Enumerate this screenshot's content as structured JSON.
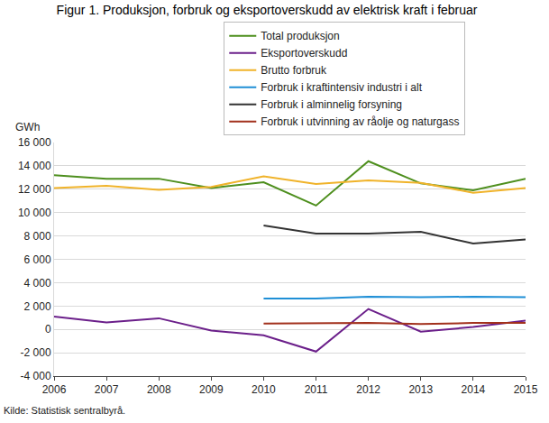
{
  "chart_data": {
    "type": "line",
    "title": "Figur 1. Produksjon, forbruk og eksportoverskudd av elektrisk kraft i februar",
    "ylabel": "GWh",
    "source": "Kilde: Statistisk sentralbyrå.",
    "x": [
      2006,
      2007,
      2008,
      2009,
      2010,
      2011,
      2012,
      2013,
      2014,
      2015
    ],
    "xlim": [
      2006,
      2015
    ],
    "xticks": [
      2006,
      2007,
      2008,
      2009,
      2010,
      2011,
      2012,
      2013,
      2014,
      2015
    ],
    "ylim": [
      -4000,
      16000
    ],
    "yticks": [
      {
        "value": -4000,
        "label": "-4 000"
      },
      {
        "value": -2000,
        "label": "-2 000"
      },
      0,
      {
        "value": 2000,
        "label": "2 000"
      },
      {
        "value": 4000,
        "label": "4 000"
      },
      {
        "value": 6000,
        "label": "6 000"
      },
      {
        "value": 8000,
        "label": "8 000"
      },
      {
        "value": 10000,
        "label": "10 000"
      },
      {
        "value": 12000,
        "label": "12 000"
      },
      {
        "value": 14000,
        "label": "14 000"
      },
      {
        "value": 16000,
        "label": "16 000"
      }
    ],
    "grid": true,
    "legend": "top",
    "series": [
      {
        "name": "Total produksjon",
        "color": "#4e8f1e",
        "values": [
          13200,
          12900,
          12900,
          12100,
          12600,
          10600,
          14400,
          12500,
          11900,
          12900
        ]
      },
      {
        "name": "Eksportoverskudd",
        "color": "#6b1f8a",
        "values": [
          1100,
          600,
          950,
          -100,
          -500,
          -1900,
          1750,
          -200,
          200,
          750
        ]
      },
      {
        "name": "Brutto forbruk",
        "color": "#f0b32a",
        "values": [
          12100,
          12300,
          11950,
          12200,
          13100,
          12450,
          12750,
          12550,
          11700,
          12100
        ]
      },
      {
        "name": "Forbruk i kraftintensiv industri i alt",
        "color": "#1f8fd6",
        "values": [
          null,
          null,
          null,
          null,
          2650,
          2650,
          2800,
          2750,
          2800,
          2750
        ]
      },
      {
        "name": "Forbruk i alminnelig forsyning",
        "color": "#333333",
        "values": [
          null,
          null,
          null,
          null,
          8900,
          8200,
          8200,
          8350,
          7350,
          7700
        ]
      },
      {
        "name": "Forbruk i utvinning av råolje og naturgass",
        "color": "#a2311d",
        "values": [
          null,
          null,
          null,
          null,
          500,
          550,
          550,
          450,
          550,
          550
        ]
      }
    ]
  }
}
